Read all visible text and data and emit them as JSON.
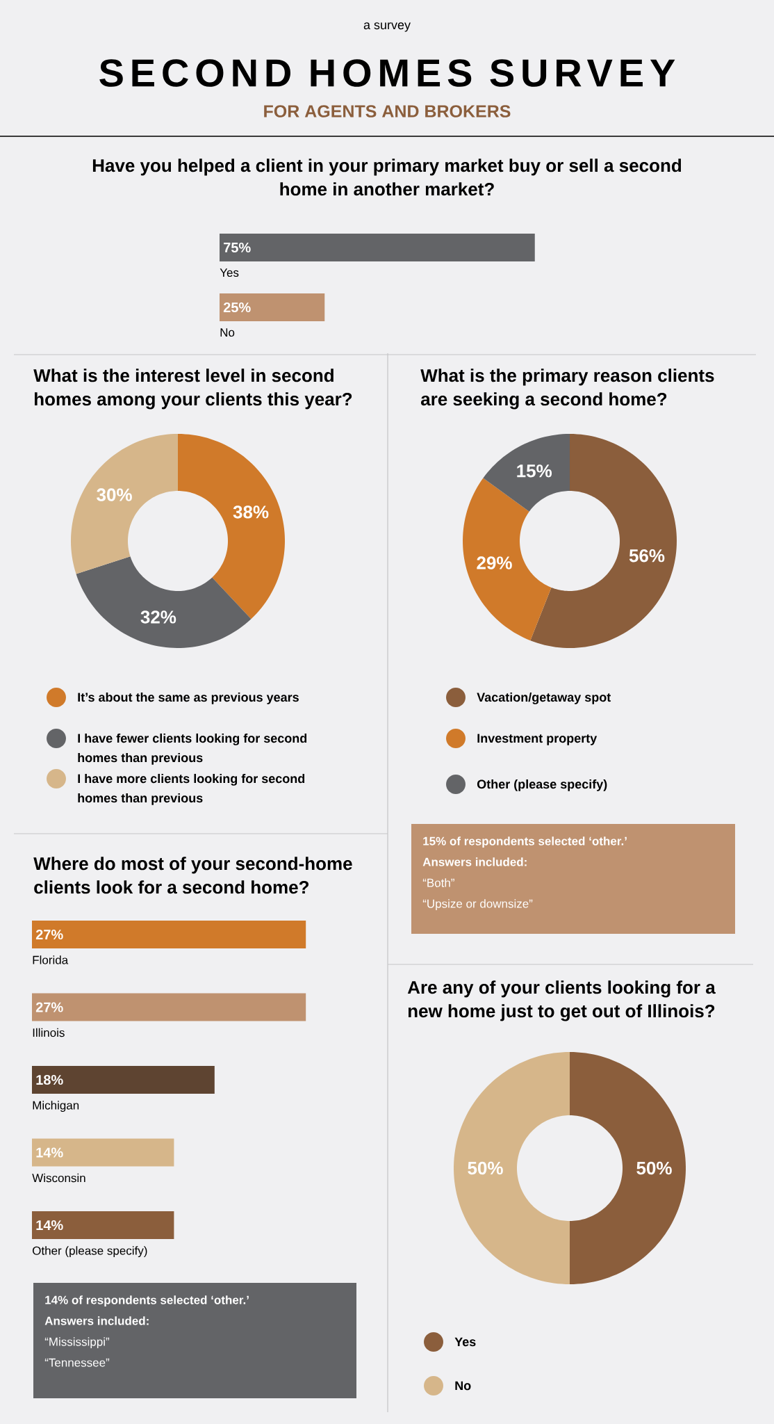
{
  "chart_data": [
    {
      "type": "other",
      "title": "SECOND HOMES SURVEY",
      "subtitle": "FOR AGENTS AND BROKERS",
      "annotations": [
        "a survey"
      ]
    },
    {
      "type": "bar",
      "orientation": "horizontal",
      "title": "Have you helped a client in your primary market buy or sell a second home in another market?",
      "categories": [
        "Yes",
        "No"
      ],
      "values": [
        75,
        25
      ],
      "colors": [
        "#636467",
        "#bf9270"
      ],
      "value_labels": [
        "75%",
        "25%"
      ]
    },
    {
      "type": "donut",
      "title": "What is the interest level in second homes among your clients this year?",
      "categories": [
        "It’s about the same as previous years",
        "I have fewer clients looking for second homes than previous",
        "I have more clients looking for second homes than previous"
      ],
      "values": [
        38,
        32,
        30
      ],
      "colors": [
        "#d07a2a",
        "#636467",
        "#d6b68a"
      ],
      "value_labels": [
        "38%",
        "32%",
        "30%"
      ],
      "legend": "bottom"
    },
    {
      "type": "donut",
      "title": "What is the primary reason clients are seeking a second home?",
      "categories": [
        "Vacation/getaway spot",
        "Investment property",
        "Other (please specify)"
      ],
      "values": [
        56,
        29,
        15
      ],
      "colors": [
        "#8b5e3c",
        "#d07a2a",
        "#636467"
      ],
      "value_labels": [
        "56%",
        "29%",
        "15%"
      ],
      "legend": "bottom",
      "annotations": [
        "15% of respondents selected ‘other.’ Answers included:",
        "“Both”",
        "“Upsize or downsize”"
      ]
    },
    {
      "type": "bar",
      "orientation": "horizontal",
      "title": "Where do most of your second-home clients look for a second home?",
      "categories": [
        "Florida",
        "Illinois",
        "Michigan",
        "Wisconsin",
        "Other (please specify)"
      ],
      "values": [
        27,
        27,
        18,
        14,
        14
      ],
      "colors": [
        "#d07a2a",
        "#bf9270",
        "#5e4431",
        "#d6b68a",
        "#8b5e3c"
      ],
      "value_labels": [
        "27%",
        "27%",
        "18%",
        "14%",
        "14%"
      ],
      "annotations": [
        "14% of respondents selected ‘other.’ Answers included:",
        "“Mississippi”",
        "“Tennessee”"
      ]
    },
    {
      "type": "donut",
      "title": "Are any of your clients looking for a new home just to get out of Illinois?",
      "categories": [
        "Yes",
        "No"
      ],
      "values": [
        50,
        50
      ],
      "colors": [
        "#8b5e3c",
        "#d6b68a"
      ],
      "value_labels": [
        "50%",
        "50%"
      ],
      "legend": "bottom"
    }
  ]
}
